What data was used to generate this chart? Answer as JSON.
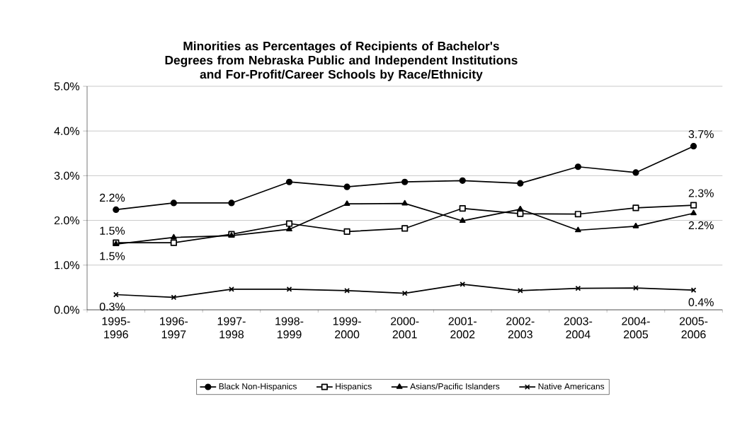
{
  "chart_data": {
    "type": "line",
    "title": "Minorities as Percentages of Recipients of Bachelor's Degrees from Nebraska Public and Independent Institutions and For-Profit/Career Schools by Race/Ethnicity",
    "categories": [
      "1995-1996",
      "1996-1997",
      "1997-1998",
      "1998-1999",
      "1999-2000",
      "2000-2001",
      "2001-2002",
      "2002-2003",
      "2003-2004",
      "2004-2005",
      "2005-2006"
    ],
    "series": [
      {
        "name": "Black Non-Hispanics",
        "color": "#000000",
        "marker": "circle",
        "values": [
          2.24,
          2.39,
          2.39,
          2.86,
          2.75,
          2.86,
          2.89,
          2.83,
          3.2,
          3.07,
          3.66
        ],
        "value_labels": [
          "2.2%",
          null,
          null,
          null,
          null,
          null,
          null,
          null,
          null,
          null,
          "3.7%"
        ]
      },
      {
        "name": "Hispanics",
        "color": "#000000",
        "marker": "square",
        "values": [
          1.5,
          1.5,
          1.69,
          1.93,
          1.75,
          1.82,
          2.27,
          2.15,
          2.14,
          2.28,
          2.34
        ],
        "value_labels": [
          "1.5%",
          null,
          null,
          null,
          null,
          null,
          null,
          null,
          null,
          null,
          "2.3%"
        ]
      },
      {
        "name": "Asians/Pacific Islanders",
        "color": "#000000",
        "marker": "triangle",
        "values": [
          1.47,
          1.62,
          1.66,
          1.8,
          2.37,
          2.38,
          1.99,
          2.25,
          1.78,
          1.87,
          2.16
        ],
        "value_labels": [
          "1.5%",
          null,
          null,
          null,
          null,
          null,
          null,
          null,
          null,
          null,
          "2.2%"
        ]
      },
      {
        "name": "Native Americans",
        "color": "#000000",
        "marker": "cross",
        "values": [
          0.34,
          0.28,
          0.46,
          0.46,
          0.43,
          0.37,
          0.57,
          0.43,
          0.48,
          0.49,
          0.44
        ],
        "value_labels": [
          "0.3%",
          null,
          null,
          null,
          null,
          null,
          null,
          null,
          null,
          null,
          "0.4%"
        ]
      }
    ],
    "ylim": [
      0,
      5
    ],
    "yticks": [
      {
        "value": 0,
        "label": "0.0%"
      },
      {
        "value": 1,
        "label": "1.0%"
      },
      {
        "value": 2,
        "label": "2.0%"
      },
      {
        "value": 3,
        "label": "3.0%"
      },
      {
        "value": 4,
        "label": "4.0%"
      },
      {
        "value": 5,
        "label": "5.0%"
      }
    ],
    "grid": "y",
    "legend": "bottom",
    "line_style": "solid"
  }
}
